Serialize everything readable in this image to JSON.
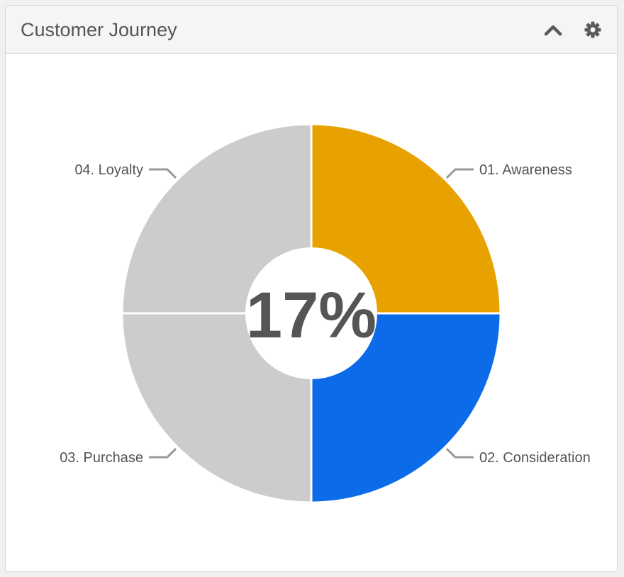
{
  "widget": {
    "title": "Customer Journey",
    "collapse_icon": "chevron-up-icon",
    "settings_icon": "gear-icon"
  },
  "chart_data": {
    "type": "pie",
    "title": "",
    "center_label": "17%",
    "donut": true,
    "slices": [
      {
        "label": "01. Awareness",
        "value": 25,
        "color": "#E8A200"
      },
      {
        "label": "02. Consideration",
        "value": 25,
        "color": "#0B6BE8"
      },
      {
        "label": "03. Purchase",
        "value": 25,
        "color": "#CCCCCC"
      },
      {
        "label": "04. Loyalty",
        "value": 25,
        "color": "#CCCCCC"
      }
    ],
    "label_color": "#555555",
    "leader_color": "#999999"
  }
}
